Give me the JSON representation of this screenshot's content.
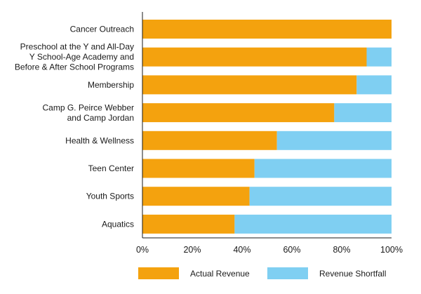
{
  "chart_data": {
    "type": "bar",
    "orientation": "horizontal",
    "stacked": true,
    "title": "",
    "xlabel": "",
    "ylabel": "",
    "xlim": [
      0,
      100
    ],
    "xticks": [
      "0%",
      "20%",
      "40%",
      "60%",
      "80%",
      "100%"
    ],
    "grid": false,
    "legend_position": "bottom",
    "categories": [
      [
        "Cancer Outreach"
      ],
      [
        "Preschool at the Y and All-Day",
        "Y School-Age Academy and",
        "Before & After School Programs"
      ],
      [
        "Membership"
      ],
      [
        "Camp G. Peirce Webber",
        "and Camp Jordan"
      ],
      [
        "Health & Wellness"
      ],
      [
        "Teen Center"
      ],
      [
        "Youth Sports"
      ],
      [
        "Aquatics"
      ]
    ],
    "series": [
      {
        "name": "Actual Revenue",
        "color": "#f4a20e",
        "values": [
          100,
          90,
          86,
          77,
          54,
          45,
          43,
          37
        ]
      },
      {
        "name": "Revenue Shortfall",
        "color": "#7fcff2",
        "values": [
          0,
          10,
          14,
          23,
          46,
          55,
          57,
          63
        ]
      }
    ]
  }
}
